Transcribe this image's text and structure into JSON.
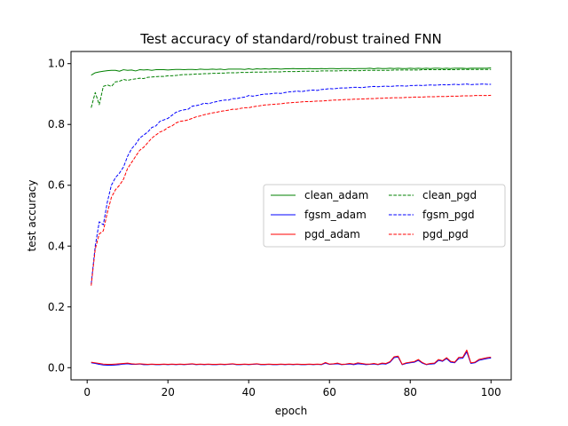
{
  "chart_data": {
    "type": "line",
    "title": "Test accuracy of standard/robust trained FNN",
    "xlabel": "epoch",
    "ylabel": "test accuracy",
    "xlim": [
      -4,
      105
    ],
    "ylim": [
      -0.04,
      1.04
    ],
    "xticks": [
      0,
      20,
      40,
      60,
      80,
      100
    ],
    "yticks": [
      0.0,
      0.2,
      0.4,
      0.6,
      0.8,
      1.0
    ],
    "xtick_labels": [
      "0",
      "20",
      "40",
      "60",
      "80",
      "100"
    ],
    "ytick_labels": [
      "0.0",
      "0.2",
      "0.4",
      "0.6",
      "0.8",
      "1.0"
    ],
    "grid": false,
    "legend_position": "center-right",
    "legend_columns": 2,
    "x": [
      1,
      2,
      3,
      4,
      5,
      6,
      7,
      8,
      9,
      10,
      11,
      12,
      13,
      14,
      15,
      16,
      17,
      18,
      19,
      20,
      21,
      22,
      23,
      24,
      25,
      26,
      27,
      28,
      29,
      30,
      31,
      32,
      33,
      34,
      35,
      36,
      37,
      38,
      39,
      40,
      41,
      42,
      43,
      44,
      45,
      46,
      47,
      48,
      49,
      50,
      51,
      52,
      53,
      54,
      55,
      56,
      57,
      58,
      59,
      60,
      61,
      62,
      63,
      64,
      65,
      66,
      67,
      68,
      69,
      70,
      71,
      72,
      73,
      74,
      75,
      76,
      77,
      78,
      79,
      80,
      81,
      82,
      83,
      84,
      85,
      86,
      87,
      88,
      89,
      90,
      91,
      92,
      93,
      94,
      95,
      96,
      97,
      98,
      99,
      100
    ],
    "series": [
      {
        "name": "clean_adam",
        "color": "#008000",
        "dash": "solid",
        "values": [
          0.962,
          0.97,
          0.973,
          0.975,
          0.977,
          0.978,
          0.978,
          0.975,
          0.98,
          0.978,
          0.979,
          0.976,
          0.98,
          0.979,
          0.98,
          0.978,
          0.98,
          0.98,
          0.98,
          0.979,
          0.98,
          0.981,
          0.981,
          0.98,
          0.981,
          0.981,
          0.98,
          0.982,
          0.981,
          0.981,
          0.982,
          0.981,
          0.982,
          0.98,
          0.982,
          0.982,
          0.982,
          0.982,
          0.981,
          0.983,
          0.981,
          0.983,
          0.982,
          0.983,
          0.982,
          0.983,
          0.983,
          0.982,
          0.983,
          0.983,
          0.984,
          0.983,
          0.983,
          0.983,
          0.984,
          0.983,
          0.983,
          0.984,
          0.983,
          0.984,
          0.984,
          0.983,
          0.984,
          0.984,
          0.984,
          0.983,
          0.984,
          0.984,
          0.984,
          0.985,
          0.983,
          0.985,
          0.984,
          0.984,
          0.985,
          0.984,
          0.985,
          0.984,
          0.984,
          0.985,
          0.984,
          0.985,
          0.984,
          0.985,
          0.984,
          0.985,
          0.985,
          0.984,
          0.985,
          0.984,
          0.985,
          0.985,
          0.985,
          0.984,
          0.985,
          0.985,
          0.985,
          0.985,
          0.985,
          0.986
        ]
      },
      {
        "name": "fgsm_adam",
        "color": "#0000ff",
        "dash": "solid",
        "values": [
          0.016,
          0.014,
          0.011,
          0.009,
          0.008,
          0.008,
          0.009,
          0.01,
          0.012,
          0.013,
          0.011,
          0.011,
          0.012,
          0.01,
          0.01,
          0.011,
          0.01,
          0.01,
          0.011,
          0.01,
          0.011,
          0.01,
          0.011,
          0.01,
          0.011,
          0.012,
          0.01,
          0.011,
          0.01,
          0.011,
          0.01,
          0.01,
          0.011,
          0.01,
          0.011,
          0.012,
          0.01,
          0.01,
          0.011,
          0.01,
          0.011,
          0.012,
          0.01,
          0.01,
          0.011,
          0.01,
          0.01,
          0.011,
          0.01,
          0.011,
          0.01,
          0.011,
          0.01,
          0.01,
          0.011,
          0.01,
          0.011,
          0.01,
          0.015,
          0.011,
          0.012,
          0.013,
          0.01,
          0.011,
          0.012,
          0.01,
          0.013,
          0.012,
          0.01,
          0.011,
          0.012,
          0.01,
          0.013,
          0.012,
          0.018,
          0.033,
          0.035,
          0.01,
          0.014,
          0.016,
          0.018,
          0.024,
          0.015,
          0.01,
          0.012,
          0.013,
          0.024,
          0.021,
          0.03,
          0.018,
          0.016,
          0.03,
          0.031,
          0.052,
          0.014,
          0.016,
          0.024,
          0.027,
          0.03,
          0.032
        ]
      },
      {
        "name": "pgd_adam",
        "color": "#ff0000",
        "dash": "solid",
        "values": [
          0.018,
          0.016,
          0.014,
          0.012,
          0.011,
          0.011,
          0.012,
          0.013,
          0.014,
          0.015,
          0.013,
          0.012,
          0.013,
          0.012,
          0.011,
          0.012,
          0.011,
          0.011,
          0.012,
          0.011,
          0.012,
          0.011,
          0.012,
          0.011,
          0.012,
          0.013,
          0.011,
          0.012,
          0.011,
          0.012,
          0.011,
          0.011,
          0.012,
          0.011,
          0.012,
          0.013,
          0.011,
          0.011,
          0.012,
          0.011,
          0.012,
          0.013,
          0.011,
          0.011,
          0.012,
          0.011,
          0.011,
          0.012,
          0.011,
          0.012,
          0.011,
          0.012,
          0.011,
          0.011,
          0.012,
          0.011,
          0.012,
          0.011,
          0.017,
          0.012,
          0.013,
          0.015,
          0.011,
          0.012,
          0.014,
          0.012,
          0.016,
          0.014,
          0.012,
          0.012,
          0.014,
          0.011,
          0.015,
          0.014,
          0.02,
          0.036,
          0.038,
          0.011,
          0.016,
          0.018,
          0.02,
          0.027,
          0.017,
          0.011,
          0.014,
          0.015,
          0.027,
          0.023,
          0.033,
          0.021,
          0.018,
          0.034,
          0.034,
          0.058,
          0.016,
          0.018,
          0.027,
          0.03,
          0.033,
          0.035
        ]
      },
      {
        "name": "clean_pgd",
        "color": "#008000",
        "dash": "dashed",
        "values": [
          0.855,
          0.905,
          0.865,
          0.925,
          0.93,
          0.925,
          0.94,
          0.942,
          0.948,
          0.945,
          0.948,
          0.95,
          0.952,
          0.951,
          0.955,
          0.956,
          0.957,
          0.958,
          0.958,
          0.96,
          0.96,
          0.961,
          0.963,
          0.964,
          0.964,
          0.965,
          0.966,
          0.966,
          0.967,
          0.967,
          0.968,
          0.968,
          0.969,
          0.969,
          0.97,
          0.97,
          0.97,
          0.971,
          0.971,
          0.971,
          0.972,
          0.972,
          0.972,
          0.972,
          0.973,
          0.973,
          0.973,
          0.973,
          0.974,
          0.974,
          0.974,
          0.974,
          0.975,
          0.975,
          0.975,
          0.975,
          0.975,
          0.976,
          0.976,
          0.976,
          0.976,
          0.976,
          0.977,
          0.977,
          0.977,
          0.977,
          0.977,
          0.977,
          0.978,
          0.978,
          0.978,
          0.978,
          0.978,
          0.978,
          0.978,
          0.979,
          0.979,
          0.979,
          0.979,
          0.979,
          0.979,
          0.979,
          0.98,
          0.98,
          0.98,
          0.98,
          0.98,
          0.98,
          0.98,
          0.98,
          0.98,
          0.981,
          0.981,
          0.981,
          0.981,
          0.981,
          0.981,
          0.981,
          0.981,
          0.981
        ]
      },
      {
        "name": "fgsm_pgd",
        "color": "#0000ff",
        "dash": "dashed",
        "values": [
          0.275,
          0.4,
          0.48,
          0.47,
          0.545,
          0.6,
          0.625,
          0.64,
          0.66,
          0.695,
          0.72,
          0.735,
          0.755,
          0.765,
          0.775,
          0.79,
          0.795,
          0.81,
          0.815,
          0.82,
          0.83,
          0.84,
          0.845,
          0.848,
          0.85,
          0.86,
          0.862,
          0.865,
          0.87,
          0.868,
          0.872,
          0.875,
          0.878,
          0.88,
          0.88,
          0.885,
          0.885,
          0.888,
          0.89,
          0.895,
          0.893,
          0.895,
          0.898,
          0.9,
          0.9,
          0.902,
          0.903,
          0.902,
          0.905,
          0.907,
          0.908,
          0.91,
          0.908,
          0.91,
          0.912,
          0.913,
          0.912,
          0.915,
          0.916,
          0.918,
          0.917,
          0.919,
          0.92,
          0.92,
          0.921,
          0.922,
          0.922,
          0.921,
          0.923,
          0.924,
          0.925,
          0.924,
          0.925,
          0.926,
          0.925,
          0.926,
          0.927,
          0.927,
          0.926,
          0.928,
          0.928,
          0.929,
          0.928,
          0.929,
          0.93,
          0.929,
          0.93,
          0.931,
          0.93,
          0.931,
          0.932,
          0.931,
          0.932,
          0.933,
          0.931,
          0.932,
          0.932,
          0.933,
          0.932,
          0.932
        ]
      },
      {
        "name": "pgd_pgd",
        "color": "#ff0000",
        "dash": "dashed",
        "values": [
          0.27,
          0.39,
          0.44,
          0.45,
          0.51,
          0.56,
          0.585,
          0.6,
          0.62,
          0.655,
          0.675,
          0.695,
          0.715,
          0.725,
          0.74,
          0.755,
          0.765,
          0.775,
          0.78,
          0.79,
          0.795,
          0.805,
          0.81,
          0.812,
          0.815,
          0.82,
          0.825,
          0.828,
          0.832,
          0.835,
          0.838,
          0.84,
          0.843,
          0.845,
          0.847,
          0.85,
          0.85,
          0.853,
          0.855,
          0.855,
          0.858,
          0.86,
          0.862,
          0.864,
          0.865,
          0.866,
          0.867,
          0.868,
          0.87,
          0.871,
          0.872,
          0.873,
          0.874,
          0.875,
          0.875,
          0.876,
          0.877,
          0.877,
          0.878,
          0.879,
          0.88,
          0.88,
          0.881,
          0.882,
          0.882,
          0.883,
          0.883,
          0.884,
          0.884,
          0.885,
          0.885,
          0.886,
          0.886,
          0.887,
          0.887,
          0.888,
          0.888,
          0.888,
          0.889,
          0.889,
          0.89,
          0.89,
          0.89,
          0.891,
          0.891,
          0.891,
          0.892,
          0.892,
          0.892,
          0.893,
          0.893,
          0.893,
          0.894,
          0.894,
          0.894,
          0.895,
          0.895,
          0.895,
          0.895,
          0.896
        ]
      }
    ]
  }
}
